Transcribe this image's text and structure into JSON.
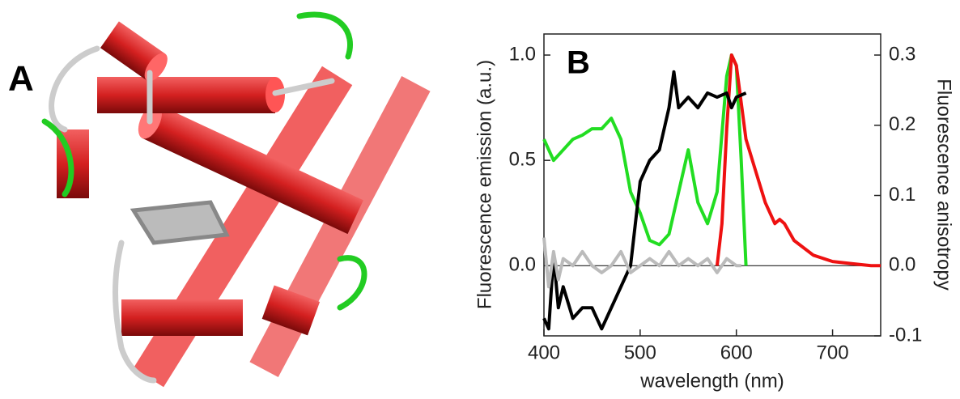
{
  "panel_a": {
    "label": "A"
  },
  "chart_data": {
    "type": "line",
    "panel_label": "B",
    "xlabel": "wavelength (nm)",
    "ylabel": "Fluorescence emission (a.u.)",
    "y2label": "Fluorescence  anisotropy",
    "xlim": [
      400,
      750
    ],
    "xticks": [
      400,
      500,
      600,
      700
    ],
    "ylim": [
      -0.333,
      1.1
    ],
    "yticks": [
      0.5,
      {
        "value": 0,
        "label": "0.0"
      },
      {
        "value": 1,
        "label": "1.0"
      }
    ],
    "y2lim": [
      -0.1,
      0.33
    ],
    "y2ticks": [
      -0.1,
      {
        "value": 0,
        "label": "0.0"
      },
      0.1,
      0.2,
      0.3
    ],
    "series": [
      {
        "color": "#22dd22",
        "axis": "y",
        "x": [
          400,
          410,
          420,
          430,
          440,
          450,
          460,
          470,
          480,
          490,
          500,
          510,
          520,
          530,
          540,
          550,
          560,
          570,
          580,
          590,
          595,
          600,
          605,
          610
        ],
        "values": [
          0.6,
          0.5,
          0.55,
          0.6,
          0.62,
          0.65,
          0.65,
          0.7,
          0.6,
          0.35,
          0.25,
          0.12,
          0.1,
          0.15,
          0.35,
          0.55,
          0.3,
          0.2,
          0.35,
          0.9,
          1.0,
          0.95,
          0.5,
          0.0
        ]
      },
      {
        "color": "#ee1111",
        "axis": "y",
        "x": [
          580,
          585,
          590,
          595,
          600,
          610,
          620,
          630,
          640,
          645,
          650,
          660,
          680,
          700,
          720,
          740,
          750
        ],
        "values": [
          0.0,
          0.2,
          0.65,
          1.0,
          0.95,
          0.6,
          0.45,
          0.3,
          0.2,
          0.22,
          0.2,
          0.12,
          0.05,
          0.02,
          0.01,
          0.0,
          0.0
        ]
      },
      {
        "color": "#000000",
        "axis": "y2",
        "x": [
          400,
          405,
          410,
          415,
          420,
          430,
          440,
          450,
          460,
          470,
          480,
          490,
          500,
          510,
          520,
          530,
          535,
          540,
          550,
          560,
          570,
          580,
          590,
          595,
          600,
          610
        ],
        "values": [
          -0.075,
          -0.09,
          0.015,
          -0.06,
          -0.03,
          -0.075,
          -0.06,
          -0.06,
          -0.09,
          -0.06,
          -0.03,
          0,
          0.12,
          0.15,
          0.165,
          0.225,
          0.276,
          0.225,
          0.24,
          0.225,
          0.246,
          0.24,
          0.246,
          0.225,
          0.24,
          0.246
        ]
      },
      {
        "color": "#bbbbbb",
        "axis": "y2",
        "x": [
          400,
          405,
          410,
          415,
          420,
          430,
          440,
          450,
          460,
          470,
          480,
          490,
          500,
          510,
          520,
          530,
          540,
          550,
          560,
          570,
          580,
          590,
          600,
          605
        ],
        "values": [
          0.04,
          -0.03,
          0.02,
          -0.02,
          0.01,
          0.0,
          0.02,
          0.0,
          -0.01,
          0.0,
          0.02,
          -0.01,
          0.0,
          0.01,
          0.0,
          0.02,
          0.0,
          0.01,
          0.0,
          0.01,
          -0.01,
          0.01,
          0.0,
          0.0
        ]
      }
    ]
  }
}
